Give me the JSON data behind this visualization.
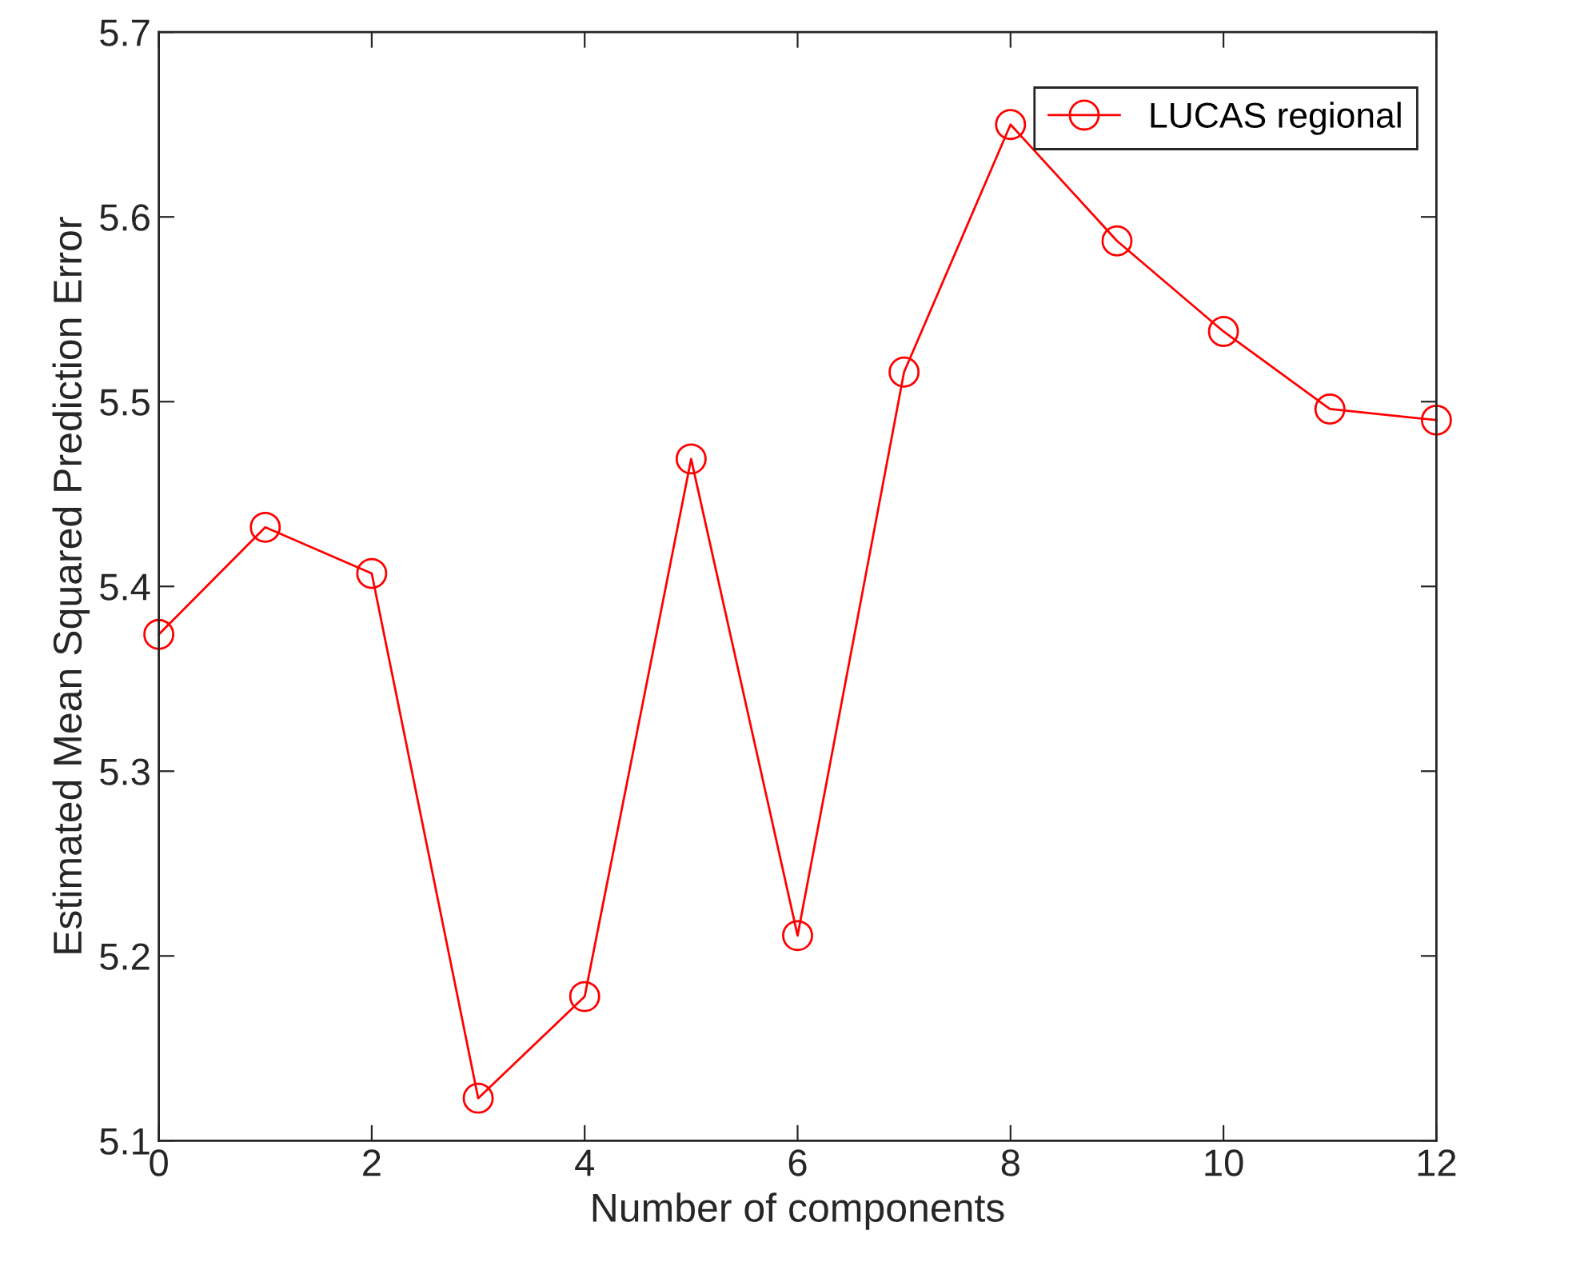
{
  "chart_data": {
    "type": "line",
    "xlabel": "Number of components",
    "ylabel": "Estimated Mean Squared Prediction Error",
    "x": [
      0,
      1,
      2,
      3,
      4,
      5,
      6,
      7,
      8,
      9,
      10,
      11,
      12
    ],
    "series": [
      {
        "name": "LUCAS regional",
        "color": "#ff0000",
        "values": [
          5.374,
          5.432,
          5.407,
          5.123,
          5.178,
          5.469,
          5.211,
          5.516,
          5.65,
          5.587,
          5.538,
          5.496,
          5.49
        ]
      }
    ],
    "xlim": [
      0,
      12
    ],
    "xticks": [
      0,
      2,
      4,
      6,
      8,
      10,
      12
    ],
    "ylim": [
      5.1,
      5.7
    ],
    "yticks": [
      5.1,
      5.2,
      5.3,
      5.4,
      5.5,
      5.6,
      5.7
    ],
    "marker": "circle",
    "line_style": "solid",
    "legend": "top right",
    "grid": false
  }
}
